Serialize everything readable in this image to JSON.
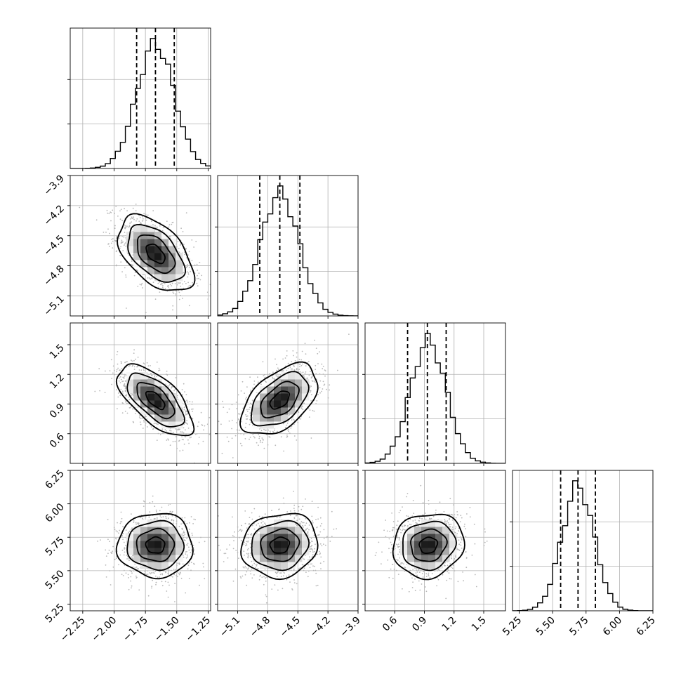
{
  "chart_data": {
    "type": "corner",
    "title": "",
    "grid": true,
    "parameters": [
      {
        "label": "",
        "ticks": [
          "−2.25",
          "−2.00",
          "−1.75",
          "−1.50",
          "−1.25"
        ],
        "tick_values": [
          -2.25,
          -2.0,
          -1.75,
          -1.5,
          -1.25
        ],
        "range": [
          -2.35,
          -1.23
        ],
        "mean": -1.67,
        "sd": 0.15,
        "quantiles": [
          -1.82,
          -1.67,
          -1.52
        ]
      },
      {
        "label": "",
        "ticks": [
          "−5.1",
          "−4.8",
          "−4.5",
          "−4.2",
          "−3.9"
        ],
        "tick_values": [
          -5.1,
          -4.8,
          -4.5,
          -4.2,
          -3.9
        ],
        "range": [
          -5.3,
          -3.9
        ],
        "mean": -4.68,
        "sd": 0.19,
        "quantiles": [
          -4.88,
          -4.68,
          -4.48
        ]
      },
      {
        "label": "",
        "ticks": [
          "0.6",
          "0.9",
          "1.2",
          "1.5"
        ],
        "tick_values": [
          0.6,
          0.9,
          1.2,
          1.5
        ],
        "range": [
          0.3,
          1.72
        ],
        "mean": 0.94,
        "sd": 0.18,
        "quantiles": [
          0.73,
          0.93,
          1.12
        ]
      },
      {
        "label": "",
        "ticks": [
          "5.25",
          "5.50",
          "5.75",
          "6.00",
          "6.25"
        ],
        "tick_values": [
          5.25,
          5.5,
          5.75,
          6.0,
          6.25
        ],
        "range": [
          5.2,
          6.25
        ],
        "mean": 5.69,
        "sd": 0.12,
        "quantiles": [
          5.56,
          5.69,
          5.82
        ]
      }
    ],
    "correlations": [
      {
        "row": 1,
        "col": 0,
        "r": -0.5
      },
      {
        "row": 2,
        "col": 0,
        "r": -0.65
      },
      {
        "row": 2,
        "col": 1,
        "r": 0.5
      },
      {
        "row": 3,
        "col": 0,
        "r": 0.0
      },
      {
        "row": 3,
        "col": 1,
        "r": 0.1
      },
      {
        "row": 3,
        "col": 2,
        "r": 0.1
      }
    ],
    "colors": {
      "contour": "#000000",
      "scatter": "#b8b8b8",
      "grid": "#b0b0b0"
    }
  }
}
